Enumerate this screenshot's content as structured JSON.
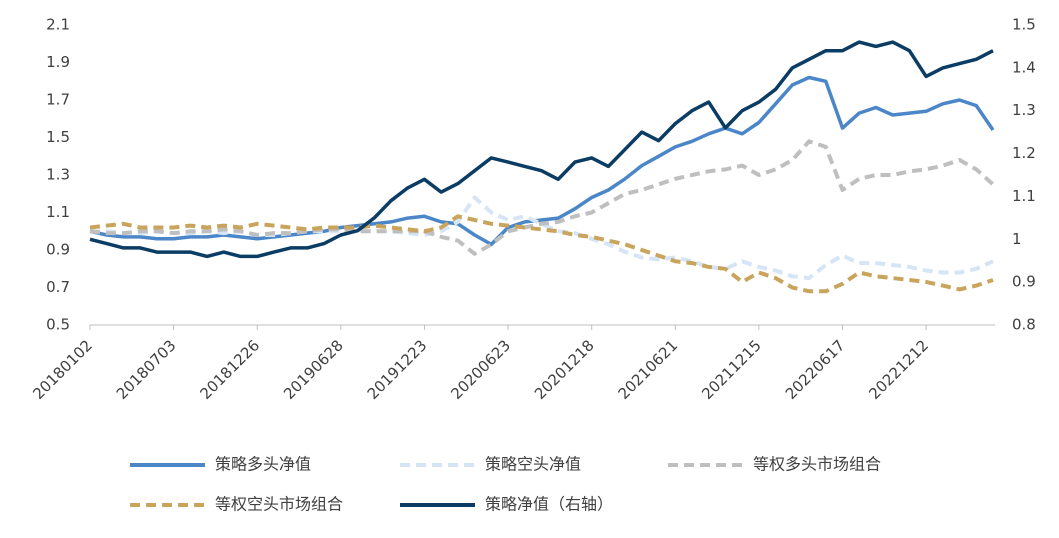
{
  "chart_data": {
    "type": "line",
    "categories": [
      "20180102",
      null,
      null,
      null,
      null,
      "20180703",
      null,
      null,
      null,
      null,
      "20181226",
      null,
      null,
      null,
      null,
      "20190628",
      null,
      null,
      null,
      null,
      "20191223",
      null,
      null,
      null,
      null,
      "20200623",
      null,
      null,
      null,
      null,
      "20201218",
      null,
      null,
      null,
      null,
      "20210621",
      null,
      null,
      null,
      null,
      "20211215",
      null,
      null,
      null,
      null,
      "20220617",
      null,
      null,
      null,
      null,
      "20221212",
      null,
      null,
      null,
      null
    ],
    "ylim": [
      0.5,
      2.1
    ],
    "yticks": [
      0.5,
      0.7,
      0.9,
      1.1,
      1.3,
      1.5,
      1.7,
      1.9,
      2.1
    ],
    "y2lim": [
      0.8,
      1.5
    ],
    "y2ticks": [
      0.8,
      0.9,
      1,
      1.1,
      1.2,
      1.3,
      1.4,
      1.5
    ],
    "series": [
      {
        "name": "策略多头净值",
        "color": "#4a86c8",
        "dash": "solid",
        "values": [
          1.0,
          0.98,
          0.97,
          0.97,
          0.96,
          0.96,
          0.97,
          0.97,
          0.98,
          0.97,
          0.96,
          0.97,
          0.98,
          0.99,
          1.0,
          1.02,
          1.03,
          1.04,
          1.05,
          1.07,
          1.08,
          1.05,
          1.04,
          0.98,
          0.93,
          1.02,
          1.05,
          1.06,
          1.07,
          1.12,
          1.18,
          1.22,
          1.28,
          1.35,
          1.4,
          1.45,
          1.48,
          1.52,
          1.55,
          1.52,
          1.58,
          1.68,
          1.78,
          1.82,
          1.8,
          1.55,
          1.63,
          1.66,
          1.62,
          1.63,
          1.64,
          1.68,
          1.7,
          1.67,
          1.54
        ]
      },
      {
        "name": "策略空头净值",
        "color": "#d5e5f5",
        "dash": "dashed",
        "values": [
          1.0,
          1.0,
          0.99,
          0.99,
          1.0,
          0.99,
          0.99,
          1.0,
          0.99,
          1.0,
          0.98,
          0.98,
          0.99,
          1.0,
          1.0,
          1.0,
          1.0,
          1.0,
          1.0,
          0.99,
          0.98,
          1.0,
          1.05,
          1.18,
          1.1,
          1.06,
          1.08,
          1.04,
          1.0,
          0.99,
          0.96,
          0.93,
          0.89,
          0.86,
          0.85,
          0.86,
          0.84,
          0.81,
          0.8,
          0.84,
          0.81,
          0.79,
          0.76,
          0.75,
          0.82,
          0.87,
          0.83,
          0.83,
          0.82,
          0.81,
          0.79,
          0.78,
          0.78,
          0.8,
          0.84
        ]
      },
      {
        "name": "等权多头市场组合",
        "color": "#bfbfbf",
        "dash": "dashed",
        "values": [
          1.0,
          0.99,
          0.99,
          1.0,
          1.0,
          0.99,
          1.0,
          1.0,
          1.01,
          1.0,
          0.98,
          0.99,
          0.99,
          1.0,
          1.01,
          1.01,
          1.0,
          1.0,
          1.0,
          1.0,
          1.0,
          0.97,
          0.95,
          0.88,
          0.93,
          1.0,
          1.02,
          1.04,
          1.05,
          1.08,
          1.1,
          1.15,
          1.2,
          1.22,
          1.25,
          1.28,
          1.3,
          1.32,
          1.33,
          1.35,
          1.3,
          1.33,
          1.38,
          1.48,
          1.45,
          1.22,
          1.28,
          1.3,
          1.3,
          1.32,
          1.33,
          1.35,
          1.38,
          1.33,
          1.25
        ]
      },
      {
        "name": "等权空头市场组合",
        "color": "#c9a45c",
        "dash": "dashed",
        "values": [
          1.02,
          1.03,
          1.04,
          1.02,
          1.02,
          1.02,
          1.03,
          1.02,
          1.03,
          1.02,
          1.04,
          1.03,
          1.02,
          1.01,
          1.02,
          1.02,
          1.02,
          1.03,
          1.02,
          1.01,
          1.0,
          1.02,
          1.08,
          1.06,
          1.04,
          1.03,
          1.02,
          1.01,
          1.0,
          0.98,
          0.97,
          0.95,
          0.93,
          0.9,
          0.87,
          0.84,
          0.83,
          0.81,
          0.8,
          0.73,
          0.78,
          0.75,
          0.7,
          0.68,
          0.68,
          0.72,
          0.78,
          0.76,
          0.75,
          0.74,
          0.73,
          0.71,
          0.69,
          0.71,
          0.74
        ]
      },
      {
        "name": "策略净值（右轴）",
        "color": "#0b3c63",
        "dash": "solid",
        "axis": "y2",
        "values": [
          1.0,
          0.99,
          0.98,
          0.98,
          0.97,
          0.97,
          0.97,
          0.96,
          0.97,
          0.96,
          0.96,
          0.97,
          0.98,
          0.98,
          0.99,
          1.01,
          1.02,
          1.05,
          1.09,
          1.12,
          1.14,
          1.11,
          1.13,
          1.16,
          1.19,
          1.18,
          1.17,
          1.16,
          1.14,
          1.18,
          1.19,
          1.17,
          1.21,
          1.25,
          1.23,
          1.27,
          1.3,
          1.32,
          1.26,
          1.3,
          1.32,
          1.35,
          1.4,
          1.42,
          1.44,
          1.44,
          1.46,
          1.45,
          1.46,
          1.44,
          1.38,
          1.4,
          1.41,
          1.42,
          1.44
        ]
      }
    ]
  }
}
